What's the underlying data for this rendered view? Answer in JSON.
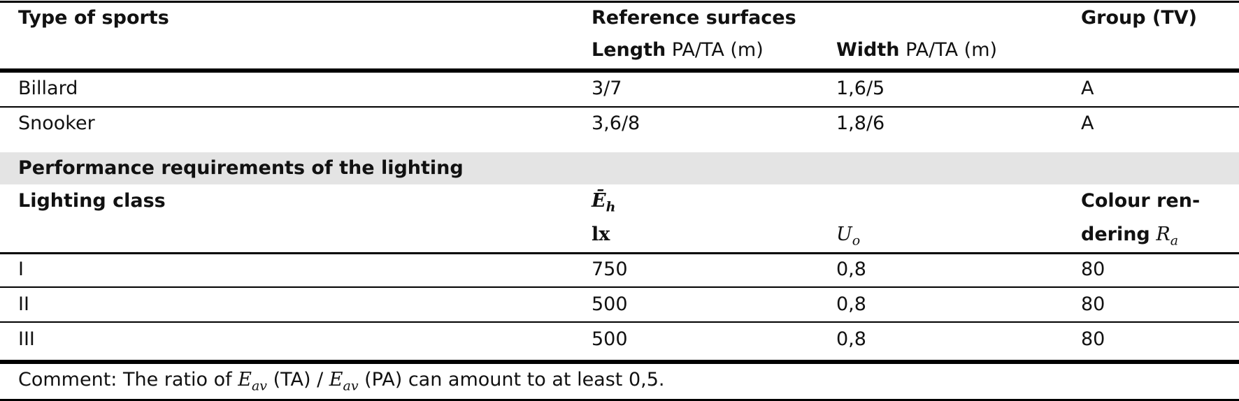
{
  "header": {
    "sport": "Type of sports",
    "reference": "Reference surfaces",
    "group": "Group (TV)",
    "length_bold": "Length",
    "length_unit": "PA/TA (m)",
    "width_bold": "Width",
    "width_unit": "PA/TA (m)"
  },
  "sports": [
    [
      "Billard",
      "3/7",
      "1,6/5",
      "A"
    ],
    [
      "Snooker",
      "3,6/8",
      "1,8/6",
      "A"
    ]
  ],
  "section": "Performance requirements of the lighting",
  "lighting_header": {
    "class": "Lighting class",
    "eh": "Ē",
    "eh_sub": "h",
    "eh_unit": "lx",
    "uo": "U",
    "uo_sub": "o",
    "colour1": "Colour ren-",
    "colour2": "dering",
    "ra": "R",
    "ra_sub": "a"
  },
  "lighting": [
    [
      "I",
      "750",
      "0,8",
      "80"
    ],
    [
      "II",
      "500",
      "0,8",
      "80"
    ],
    [
      "III",
      "500",
      "0,8",
      "80"
    ]
  ],
  "comment": {
    "before": "Comment: The ratio of ",
    "e": "E",
    "sub": "av",
    "mid": " (TA) / ",
    "after": " (PA) can amount to at least 0,5."
  }
}
